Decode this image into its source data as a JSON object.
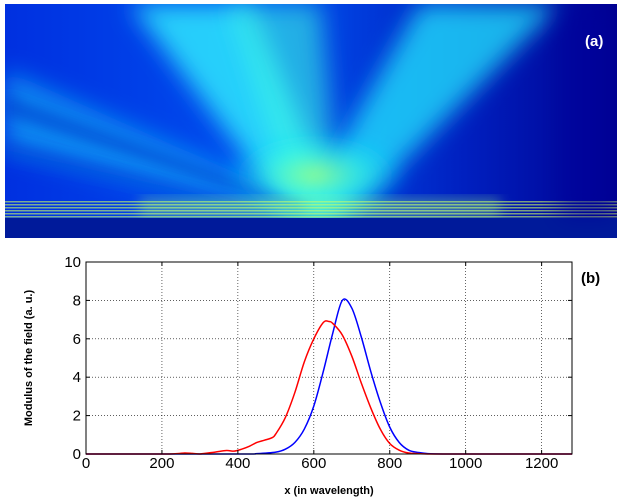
{
  "panel_a": {
    "label": "(a)",
    "colormap": [
      "#00008f",
      "#0020d0",
      "#0070ff",
      "#00d8ff",
      "#40ffd8",
      "#a0ff80"
    ]
  },
  "panel_b": {
    "label": "(b)"
  },
  "chart_data": {
    "type": "line",
    "title": "",
    "xlabel": "x (in wavelength)",
    "ylabel": "Modulus of the field (a. u.)",
    "xlim": [
      0,
      1280
    ],
    "ylim": [
      0,
      10
    ],
    "xticks": [
      0,
      200,
      400,
      600,
      800,
      1000,
      1200
    ],
    "yticks": [
      0,
      2,
      4,
      6,
      8,
      10
    ],
    "xtick_labels": [
      "0",
      "200",
      "400",
      "600",
      "800",
      "1000",
      "1200"
    ],
    "ytick_labels": [
      "0",
      "2",
      "4",
      "6",
      "8",
      "10"
    ],
    "grid": true,
    "legend": "none",
    "series": [
      {
        "color": "#0000ff",
        "x": [
          0,
          400,
          450,
          500,
          525,
          550,
          575,
          600,
          625,
          650,
          675,
          700,
          725,
          750,
          775,
          800,
          825,
          850,
          875,
          900,
          950,
          1000,
          1280
        ],
        "y": [
          0,
          0,
          0.02,
          0.1,
          0.25,
          0.6,
          1.3,
          2.5,
          4.3,
          6.3,
          8.0,
          7.6,
          6.1,
          4.3,
          2.7,
          1.4,
          0.6,
          0.2,
          0.08,
          0.02,
          0,
          0,
          0
        ]
      },
      {
        "color": "#ff0000",
        "x": [
          0,
          200,
          240,
          260,
          280,
          300,
          340,
          370,
          390,
          410,
          430,
          450,
          470,
          490,
          500,
          525,
          550,
          575,
          600,
          625,
          640,
          650,
          675,
          700,
          725,
          750,
          775,
          800,
          825,
          850,
          875,
          900,
          950,
          1280
        ],
        "y": [
          0,
          0,
          0.02,
          0.05,
          0.03,
          0,
          0.1,
          0.18,
          0.15,
          0.25,
          0.4,
          0.6,
          0.72,
          0.85,
          1.05,
          1.9,
          3.2,
          4.8,
          6.0,
          6.85,
          6.9,
          6.8,
          6.2,
          5.1,
          3.7,
          2.4,
          1.3,
          0.55,
          0.2,
          0.05,
          0.02,
          0,
          0,
          0
        ]
      }
    ]
  }
}
